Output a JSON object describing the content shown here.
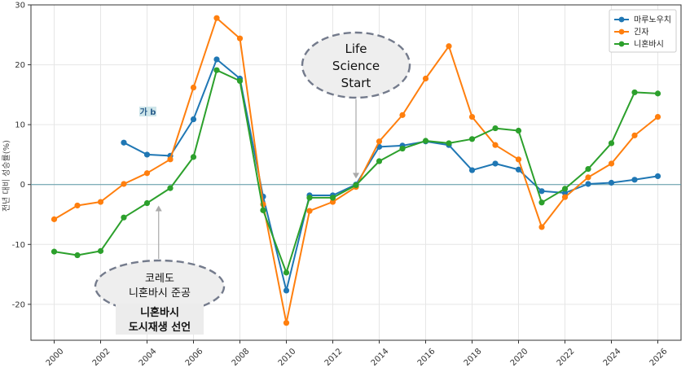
{
  "chart_data": {
    "type": "line",
    "title": "",
    "xlabel": "",
    "ylabel": "전년 대비 성승률(%)",
    "xlim": [
      1999,
      2027
    ],
    "ylim": [
      -26,
      30
    ],
    "xticks": [
      "2000",
      "2002",
      "2004",
      "2006",
      "2008",
      "2010",
      "2012",
      "2014",
      "2016",
      "2018",
      "2020",
      "2022",
      "2024",
      "2026"
    ],
    "yticks": [
      "30",
      "20",
      "10",
      "0",
      "-10",
      "-20"
    ],
    "grid": true,
    "legend_position": "top-right",
    "zero_line": 0,
    "series": [
      {
        "name": "마루노우치",
        "color": "#1f77b4",
        "x": [
          2003,
          2004,
          2005,
          2006,
          2007,
          2008,
          2009,
          2010,
          2011,
          2012,
          2013,
          2014,
          2015,
          2016,
          2017,
          2018,
          2019,
          2020,
          2021,
          2022,
          2023,
          2024,
          2025,
          2026
        ],
        "values": [
          7.0,
          5.0,
          4.8,
          10.9,
          20.9,
          17.7,
          -2.0,
          -17.7,
          -1.8,
          -1.8,
          0.0,
          6.3,
          6.5,
          7.2,
          6.6,
          2.4,
          3.5,
          2.5,
          -1.1,
          -1.4,
          0.1,
          0.3,
          0.8,
          1.4
        ]
      },
      {
        "name": "긴자",
        "color": "#ff7f0e",
        "x": [
          2000,
          2001,
          2002,
          2003,
          2004,
          2005,
          2006,
          2007,
          2008,
          2009,
          2010,
          2011,
          2012,
          2013,
          2014,
          2015,
          2016,
          2017,
          2018,
          2019,
          2020,
          2021,
          2022,
          2023,
          2024,
          2025,
          2026
        ],
        "values": [
          -5.8,
          -3.5,
          -2.9,
          0.1,
          1.9,
          4.2,
          16.2,
          27.8,
          24.4,
          -3.3,
          -23.1,
          -4.4,
          -2.9,
          -0.4,
          7.2,
          11.6,
          17.7,
          23.1,
          11.3,
          6.6,
          4.2,
          -7.1,
          -2.1,
          1.2,
          3.5,
          8.2,
          11.3
        ]
      },
      {
        "name": "니혼바시",
        "color": "#2ca02c",
        "x": [
          2000,
          2001,
          2002,
          2003,
          2004,
          2005,
          2006,
          2007,
          2008,
          2009,
          2010,
          2011,
          2012,
          2013,
          2014,
          2015,
          2016,
          2017,
          2018,
          2019,
          2020,
          2021,
          2022,
          2023,
          2024,
          2025,
          2026
        ],
        "values": [
          -11.2,
          -11.8,
          -11.1,
          -5.5,
          -3.1,
          -0.6,
          4.6,
          19.1,
          17.3,
          -4.3,
          -14.7,
          -2.2,
          -2.2,
          -0.1,
          3.9,
          6.0,
          7.3,
          6.9,
          7.6,
          9.4,
          9.0,
          -3.0,
          -0.7,
          2.6,
          6.9,
          15.4,
          15.2
        ]
      }
    ],
    "annotations": [
      {
        "id": "life-science",
        "lines": [
          "Life",
          "Science",
          "Start"
        ],
        "arrow_x": 2013,
        "arrow_y": 1.0
      },
      {
        "id": "nihonbashi",
        "lines": [
          "코레도",
          "니혼바시 준공"
        ],
        "bold_lines": [
          "니혼바시",
          "도시재생 선언"
        ],
        "arrow_x": 2004.5,
        "arrow_y": -3.5
      }
    ],
    "tag": "가 b"
  }
}
